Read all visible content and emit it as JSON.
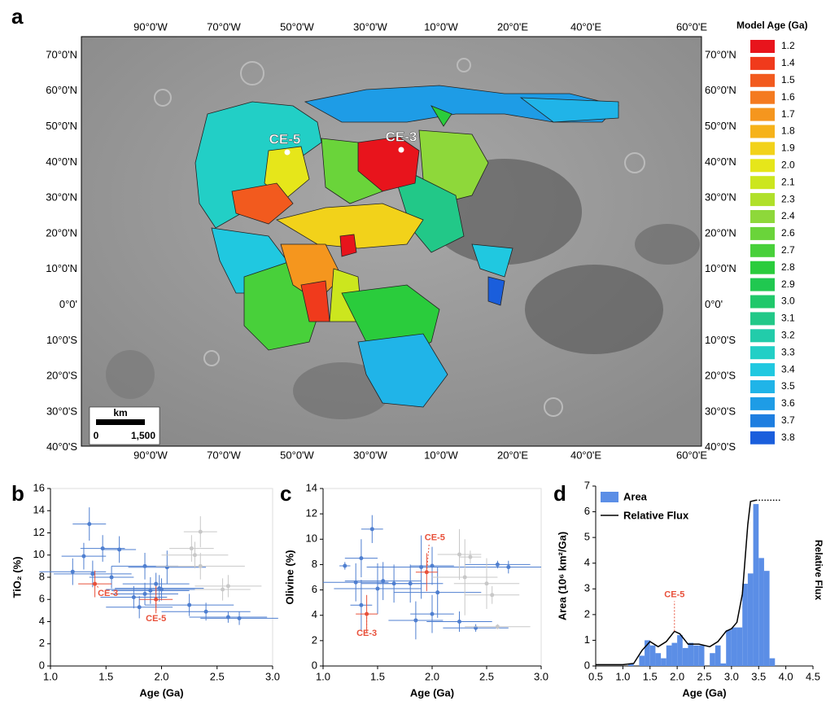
{
  "panel_labels": [
    "a",
    "b",
    "c",
    "d"
  ],
  "map": {
    "lon_labels": [
      "90°0'W",
      "70°0'W",
      "50°0'W",
      "30°0'W",
      "10°0'W",
      "20°0'E",
      "40°0'E",
      "60°0'E"
    ],
    "lat_labels": [
      "70°0'N",
      "60°0'N",
      "50°0'N",
      "40°0'N",
      "30°0'N",
      "20°0'N",
      "10°0'N",
      "0°0'",
      "10°0'S",
      "20°0'S",
      "30°0'S",
      "40°0'S"
    ],
    "legend_title": "Model Age (Ga)",
    "legend_ages": [
      "1.2",
      "1.4",
      "1.5",
      "1.6",
      "1.7",
      "1.8",
      "1.9",
      "2.0",
      "2.1",
      "2.3",
      "2.4",
      "2.6",
      "2.7",
      "2.8",
      "2.9",
      "3.0",
      "3.1",
      "3.2",
      "3.3",
      "3.4",
      "3.5",
      "3.6",
      "3.7",
      "3.8"
    ],
    "legend_colors": [
      "#e8141c",
      "#f03a1c",
      "#f25a1e",
      "#f47a20",
      "#f5961e",
      "#f6b21a",
      "#f2d21a",
      "#e6e61a",
      "#cce61e",
      "#b0e02a",
      "#8ed83a",
      "#6ad43a",
      "#48d03a",
      "#2acc3c",
      "#20c850",
      "#20c86a",
      "#22c888",
      "#22ccaa",
      "#22cfc6",
      "#20c8e0",
      "#20b4e8",
      "#1e9ce6",
      "#1e7ee0",
      "#1a5edc"
    ],
    "sites": [
      "CE-5",
      "CE-3"
    ],
    "scale_bar": {
      "unit": "km",
      "start": "0",
      "end": "1,500"
    }
  },
  "chart_data": [
    {
      "type": "scatter",
      "ylabel": "TiO₂ (%)",
      "xlabel": "Age (Ga)",
      "xlim": [
        1.0,
        3.0
      ],
      "xticks": [
        {
          "value": 1.0,
          "label": "1.0"
        },
        {
          "value": 1.5,
          "label": "1.5"
        },
        {
          "value": 2.0,
          "label": "2.0"
        },
        {
          "value": 2.5,
          "label": "2.5"
        },
        {
          "value": 3.0,
          "label": "3.0"
        }
      ],
      "ylim": [
        0,
        16
      ],
      "yticks": [
        0,
        2,
        4,
        6,
        8,
        10,
        12,
        14,
        16
      ],
      "series": [
        {
          "color": "#4f7fd0",
          "x": [
            1.35,
            1.47,
            1.62,
            1.3,
            1.85,
            2.05,
            1.2,
            1.38,
            1.55,
            1.95,
            1.98,
            1.9,
            1.85,
            2.0,
            1.75,
            1.8,
            2.25,
            2.4,
            2.6,
            2.7
          ],
          "values": [
            12.8,
            10.6,
            10.5,
            9.9,
            9.0,
            8.9,
            8.5,
            8.3,
            8.0,
            7.4,
            7.0,
            6.8,
            6.5,
            6.9,
            6.2,
            5.3,
            5.5,
            4.9,
            4.4,
            4.3
          ],
          "xerr": [
            0.15,
            0.2,
            0.15,
            0.2,
            0.3,
            0.35,
            0.3,
            0.35,
            0.2,
            0.3,
            0.4,
            0.35,
            0.3,
            0.5,
            0.3,
            0.3,
            0.4,
            0.4,
            0.35,
            0.35
          ],
          "yerr": [
            1.5,
            1.2,
            1.2,
            1.2,
            1.2,
            1.5,
            1.2,
            1.2,
            1.0,
            1.0,
            1.2,
            1.2,
            1.0,
            1.0,
            1.0,
            1.0,
            1.0,
            0.8,
            0.5,
            0.6
          ]
        },
        {
          "color": "#c8c8c8",
          "x": [
            2.35,
            2.27,
            2.3,
            2.35,
            2.6,
            2.55
          ],
          "values": [
            12.1,
            10.6,
            10.0,
            9.0,
            7.2,
            6.9
          ],
          "xerr": [
            0.15,
            0.2,
            0.3,
            0.4,
            0.3,
            0.25
          ],
          "yerr": [
            1.4,
            1.2,
            1.2,
            1.2,
            1.0,
            1.0
          ]
        },
        {
          "color": "#e8503a",
          "point_labels": [
            "CE-3",
            "CE-5"
          ],
          "x": [
            1.4,
            1.95
          ],
          "values": [
            7.4,
            6.0
          ],
          "xerr": [
            0.15,
            0.15
          ],
          "yerr": [
            1.2,
            1.2
          ]
        }
      ]
    },
    {
      "type": "scatter",
      "ylabel": "Olivine (%)",
      "xlabel": "Age (Ga)",
      "xlim": [
        1.0,
        3.0
      ],
      "xticks": [
        {
          "value": 1.0,
          "label": "1.0"
        },
        {
          "value": 1.5,
          "label": "1.5"
        },
        {
          "value": 2.0,
          "label": "2.0"
        },
        {
          "value": 2.5,
          "label": "2.5"
        },
        {
          "value": 3.0,
          "label": "3.0"
        }
      ],
      "ylim": [
        0,
        14
      ],
      "yticks": [
        0,
        2,
        4,
        6,
        8,
        10,
        12,
        14
      ],
      "series": [
        {
          "color": "#4f7fd0",
          "x": [
            1.35,
            1.45,
            1.2,
            1.3,
            1.55,
            1.65,
            1.9,
            1.8,
            2.05,
            2.0,
            1.85,
            1.35,
            2.0,
            2.25,
            2.4,
            2.6,
            2.7,
            1.5
          ],
          "values": [
            8.5,
            10.8,
            7.9,
            6.6,
            6.7,
            6.5,
            7.8,
            6.5,
            5.8,
            4.1,
            3.6,
            4.8,
            7.9,
            3.5,
            3.0,
            8.0,
            7.8,
            6.1
          ],
          "xerr": [
            0.15,
            0.1,
            0.05,
            0.3,
            0.35,
            0.3,
            0.5,
            0.3,
            0.4,
            0.2,
            0.25,
            0.1,
            0.2,
            0.3,
            0.3,
            0.3,
            0.3,
            0.4
          ],
          "yerr": [
            1.5,
            1.1,
            0.3,
            1.5,
            1.5,
            1.5,
            2.5,
            1.5,
            2.0,
            1.5,
            1.5,
            2.0,
            1.5,
            0.8,
            0.3,
            0.3,
            0.5,
            2.0
          ]
        },
        {
          "color": "#c8c8c8",
          "x": [
            2.25,
            2.35,
            2.3,
            2.5,
            2.55,
            2.6
          ],
          "values": [
            8.8,
            8.6,
            7.0,
            6.5,
            5.6,
            3.1
          ],
          "xerr": [
            0.2,
            0.1,
            0.3,
            0.3,
            0.25,
            0.3
          ],
          "yerr": [
            2.0,
            0.5,
            3.0,
            2.0,
            0.7,
            0.2
          ]
        },
        {
          "color": "#e8503a",
          "point_labels": [
            "CE-3",
            "CE-5"
          ],
          "x": [
            1.4,
            1.95
          ],
          "values": [
            4.1,
            7.4
          ],
          "xerr": [
            0.1,
            0.1
          ],
          "yerr": [
            1.5,
            1.5
          ]
        }
      ]
    },
    {
      "type": "histogram",
      "ylabel": "Area (10⁶ km²/Ga)",
      "y2label": "Relative Flux",
      "xlabel": "Age (Ga)",
      "xlim": [
        0.5,
        4.5
      ],
      "xticks": [
        0.5,
        {
          "value": 1.0,
          "label": "1.0"
        },
        1.5,
        {
          "value": 2.0,
          "label": "2.0"
        },
        2.5,
        {
          "value": 3.0,
          "label": "3.0"
        },
        3.5,
        {
          "value": 4.0,
          "label": "4.0"
        },
        4.5
      ],
      "ylim": [
        0,
        7
      ],
      "yticks": [
        0,
        1,
        2,
        3,
        4,
        5,
        6,
        7
      ],
      "name": "Area",
      "color": "#5b8ee6",
      "bins": [
        1.1,
        1.2,
        1.3,
        1.4,
        1.5,
        1.6,
        1.7,
        1.8,
        1.9,
        2.0,
        2.1,
        2.2,
        2.3,
        2.4,
        2.5,
        2.6,
        2.7,
        2.8,
        2.9,
        3.0,
        3.1,
        3.2,
        3.3,
        3.4,
        3.5,
        3.6,
        3.7,
        3.8
      ],
      "values": [
        0.1,
        0,
        0.4,
        1.0,
        0.8,
        0.5,
        0.3,
        0.8,
        0.9,
        1.2,
        0.7,
        0.9,
        0.8,
        0.8,
        0,
        0.5,
        0.8,
        0.1,
        1.4,
        1.5,
        1.5,
        3.2,
        3.6,
        6.3,
        4.2,
        3.7,
        0.3
      ],
      "lines": [
        {
          "name": "Relative Flux",
          "color": "#000000",
          "x": [
            0.5,
            1.0,
            1.2,
            1.35,
            1.5,
            1.65,
            1.8,
            1.95,
            2.05,
            2.2,
            2.4,
            2.6,
            2.75,
            2.9,
            3.0,
            3.1,
            3.2,
            3.3,
            3.35,
            3.45
          ],
          "values": [
            0.05,
            0.05,
            0.1,
            0.6,
            0.95,
            0.75,
            0.95,
            1.35,
            1.25,
            0.85,
            0.85,
            0.75,
            0.95,
            1.35,
            1.45,
            1.7,
            2.8,
            5.5,
            6.4,
            6.45
          ]
        },
        {
          "color": "#000000",
          "style": "dotted",
          "x": [
            3.45,
            3.9
          ],
          "values": [
            6.45,
            6.45
          ]
        }
      ],
      "annotations": [
        {
          "text": "CE-5",
          "x": 1.95
        }
      ]
    }
  ]
}
